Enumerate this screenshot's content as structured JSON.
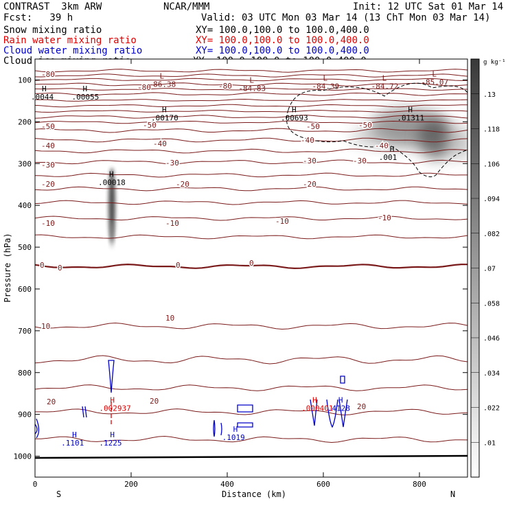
{
  "header": {
    "left_title": "CONTRAST  3km ARW",
    "center_title": "NCAR/MMM",
    "init": "Init: 12 UTC Sat 01 Mar 14",
    "fcst": "Fcst:   39 h",
    "valid": "Valid: 03 UTC Mon 03 Mar 14 (13 ChT Mon 03 Mar 14)"
  },
  "legend": [
    {
      "label": "Snow mixing ratio",
      "xy": "XY= 100.0,100.0 to 100.0,400.0",
      "color": "#000000"
    },
    {
      "label": "Rain water mixing ratio",
      "xy": "XY= 100.0,100.0 to 100.0,400.0",
      "color": "#e00000"
    },
    {
      "label": "Cloud water mixing ratio",
      "xy": "XY= 100.0,100.0 to 100.0,400.0",
      "color": "#0000c8"
    },
    {
      "label": "Cloud ice mixing ratio",
      "xy": "XY= 100.0,100.0 to 100.0,400.0",
      "color": "#000000"
    }
  ],
  "chart_data": {
    "type": "contour",
    "xlabel": "Distance (km)",
    "ylabel": "Pressure (hPa)",
    "xlim": [
      0,
      900
    ],
    "ylim": [
      1050,
      50
    ],
    "x_ticks": [
      "0",
      "200",
      "400",
      "600",
      "800"
    ],
    "y_ticks": [
      "100",
      "200",
      "300",
      "400",
      "500",
      "600",
      "700",
      "800",
      "900",
      "1000"
    ],
    "x_end_labels": {
      "left": "S",
      "right": "N"
    },
    "colorbar": {
      "unit": "g kg⁻¹",
      "levels": [
        ".01",
        ".022",
        ".034",
        ".046",
        ".058",
        ".07",
        ".082",
        ".094",
        ".106",
        ".118",
        ".13"
      ]
    },
    "temperature_labels": [
      "-80",
      "-70",
      "-60",
      "-50",
      "-40",
      "-30",
      "-20",
      "-10",
      "0",
      "10",
      "20"
    ],
    "extrema": [
      {
        "kind": "L",
        "value": "-86.38",
        "x": 265,
        "p": 110
      },
      {
        "kind": "L",
        "value": "-84.83",
        "x": 452,
        "p": 120
      },
      {
        "kind": "L",
        "value": "-84.39",
        "x": 605,
        "p": 115
      },
      {
        "kind": "L",
        "value": "-84.72",
        "x": 728,
        "p": 115
      },
      {
        "kind": "L",
        "value": "-85.07",
        "x": 832,
        "p": 105
      },
      {
        "kind": "H",
        "value": ".0044",
        "x": 20,
        "p": 140
      },
      {
        "kind": "H",
        "value": ".00055",
        "x": 105,
        "p": 140
      },
      {
        "kind": "H",
        "value": ".00170",
        "x": 270,
        "p": 190
      },
      {
        "kind": "H",
        "value": ".00693",
        "x": 540,
        "p": 190
      },
      {
        "kind": "H",
        "value": ".01311",
        "x": 782,
        "p": 190
      },
      {
        "kind": "H",
        "value": ".00018",
        "x": 160,
        "p": 345
      },
      {
        "kind": "H",
        "value": ".001",
        "x": 744,
        "p": 285
      },
      {
        "kind": "H",
        "value": ".002937",
        "x": 162,
        "p": 885
      },
      {
        "kind": "H",
        "value": ".000401",
        "x": 583,
        "p": 885
      },
      {
        "kind": "H",
        "value": ".1101",
        "x": 83,
        "p": 968
      },
      {
        "kind": "H",
        "value": ".1225",
        "x": 162,
        "p": 968
      },
      {
        "kind": "H",
        "value": ".1019",
        "x": 418,
        "p": 955
      },
      {
        "kind": "H",
        "value": ".4128",
        "x": 637,
        "p": 885
      }
    ]
  }
}
